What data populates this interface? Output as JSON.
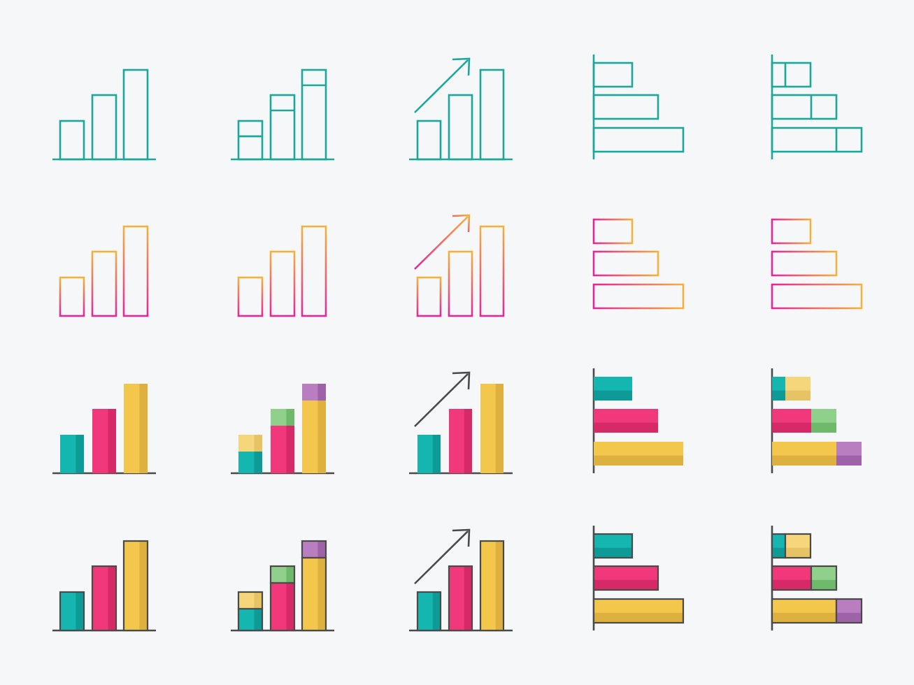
{
  "colors": {
    "background": "#f6f7f8",
    "teal_line": "#1ba89a",
    "gradient_start": "#e0289a",
    "gradient_end": "#f2b33d",
    "teal": "#15b5b0",
    "teal_shade": "#0e9a96",
    "pink": "#f0387a",
    "pink_shade": "#d62a68",
    "yellow": "#f3c64c",
    "yellow_shade": "#ddb040",
    "light_yellow": "#f5d67a",
    "light_yellow_shade": "#e6c466",
    "green": "#8fd08a",
    "green_shade": "#6fba6a",
    "purple": "#b87ec0",
    "purple_shade": "#9e62a8",
    "dark": "#4a4a4a"
  },
  "rows": [
    {
      "style": "teal-outline"
    },
    {
      "style": "gradient-outline"
    },
    {
      "style": "flat-color"
    },
    {
      "style": "outlined-color"
    }
  ],
  "icons": [
    {
      "type": "vertical-bars"
    },
    {
      "type": "stacked-vertical-bars"
    },
    {
      "type": "vertical-bars-arrow"
    },
    {
      "type": "horizontal-bars"
    },
    {
      "type": "stacked-horizontal-bars"
    }
  ]
}
